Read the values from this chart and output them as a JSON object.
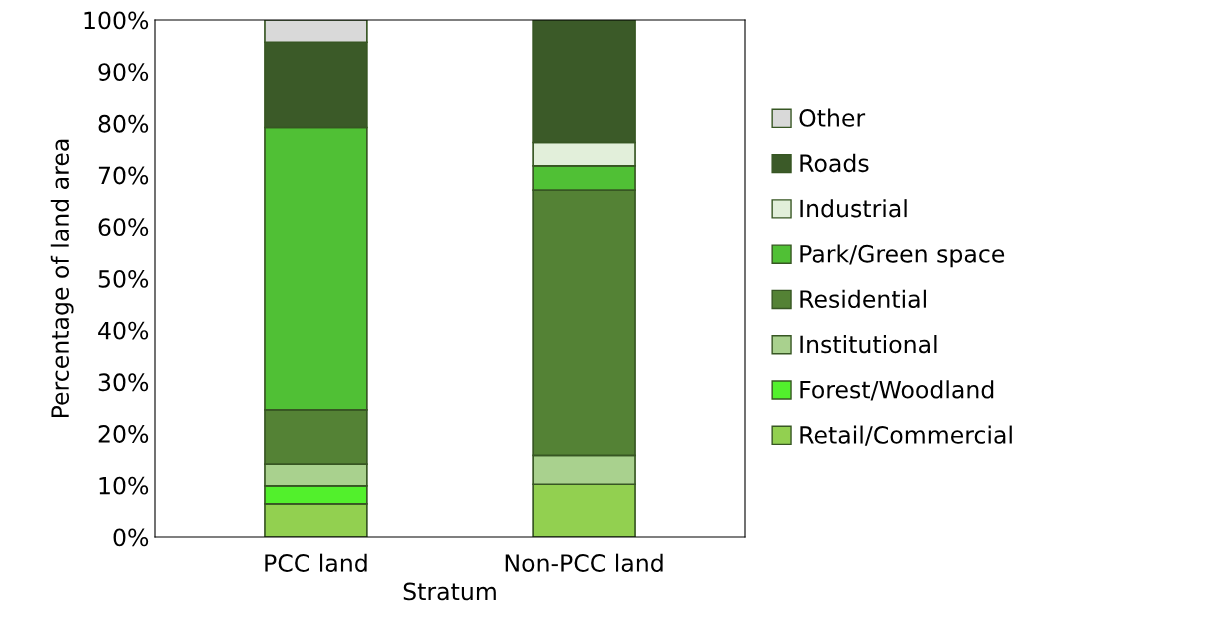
{
  "chart_data": {
    "type": "bar",
    "stacked": true,
    "xlabel": "Stratum",
    "ylabel": "Percentage of land area",
    "categories": [
      "PCC land",
      "Non-PCC land"
    ],
    "series": [
      {
        "name": "Retail/Commercial",
        "color": "#92d050",
        "values": [
          6.4,
          10.2
        ]
      },
      {
        "name": "Forest/Woodland",
        "color": "#52f02c",
        "values": [
          3.5,
          0
        ]
      },
      {
        "name": "Institutional",
        "color": "#a9d18e",
        "values": [
          4.2,
          5.6
        ]
      },
      {
        "name": "Residential",
        "color": "#548235",
        "values": [
          10.5,
          51.3
        ]
      },
      {
        "name": "Park/Green space",
        "color": "#50c035",
        "values": [
          54.6,
          4.7
        ]
      },
      {
        "name": "Industrial",
        "color": "#e2efda",
        "values": [
          0,
          4.5
        ]
      },
      {
        "name": "Roads",
        "color": "#3b5a28",
        "values": [
          16.5,
          23.7
        ]
      },
      {
        "name": "Other",
        "color": "#d9d9d9",
        "values": [
          4.3,
          0
        ]
      }
    ],
    "ylim": [
      0,
      100
    ],
    "yticks": [
      {
        "value": 0,
        "label": "0%"
      },
      {
        "value": 10,
        "label": "10%"
      },
      {
        "value": 20,
        "label": "20%"
      },
      {
        "value": 30,
        "label": "30%"
      },
      {
        "value": 40,
        "label": "40%"
      },
      {
        "value": 50,
        "label": "50%"
      },
      {
        "value": 60,
        "label": "60%"
      },
      {
        "value": 70,
        "label": "70%"
      },
      {
        "value": 80,
        "label": "80%"
      },
      {
        "value": 90,
        "label": "90%"
      },
      {
        "value": 100,
        "label": "100%"
      }
    ],
    "grid": false,
    "legend": "right"
  }
}
